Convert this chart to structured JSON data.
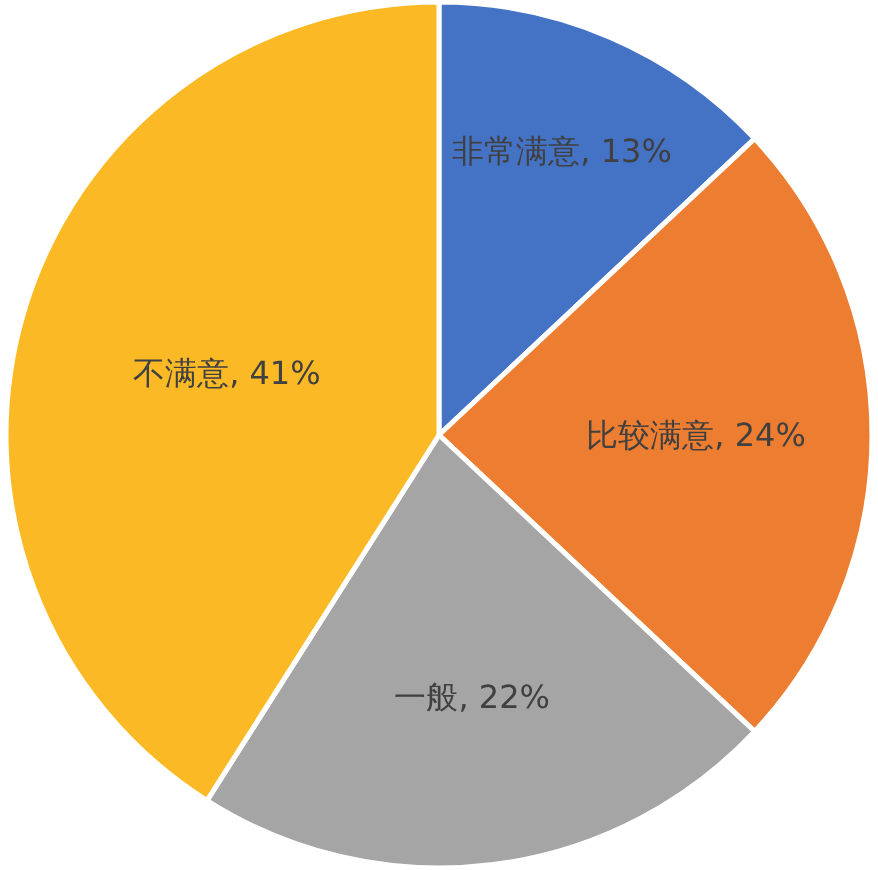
{
  "chart_data": {
    "type": "pie",
    "categories": [
      "非常满意",
      "比较满意",
      "一般",
      "不满意"
    ],
    "values": [
      13,
      24,
      22,
      41
    ],
    "colors": [
      "#4472c4",
      "#ed7d31",
      "#a5a5a5",
      "#fbba25"
    ],
    "value_labels": [
      "13%",
      "24%",
      "22%",
      "41%"
    ]
  }
}
